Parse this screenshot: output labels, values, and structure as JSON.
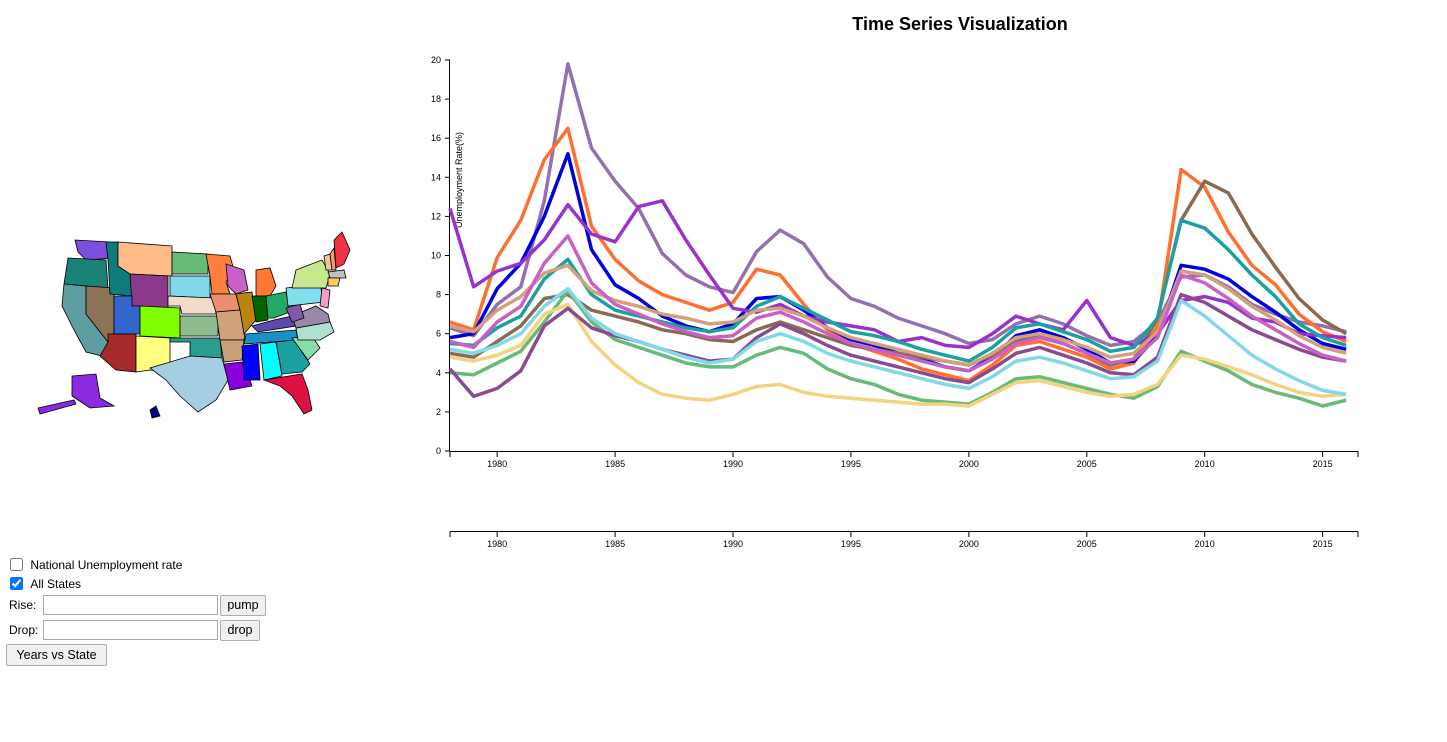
{
  "page": {
    "title": "Time Series Visualization"
  },
  "controls": {
    "national_label": "National Unemployment rate",
    "national_checked": false,
    "all_states_label": "All States",
    "all_states_checked": true,
    "rise_label": "Rise:",
    "rise_value": "",
    "pump_label": "pump",
    "drop_label": "Drop:",
    "drop_value": "",
    "drop_button_label": "drop",
    "years_vs_state_label": "Years vs State"
  },
  "map": {
    "states": [
      {
        "abbr": "WA",
        "color": "#7b4ee0"
      },
      {
        "abbr": "OR",
        "color": "#1a8276"
      },
      {
        "abbr": "CA",
        "color": "#5f9ea0"
      },
      {
        "abbr": "NV",
        "color": "#8b7355"
      },
      {
        "abbr": "ID",
        "color": "#0f7c7c"
      },
      {
        "abbr": "MT",
        "color": "#ffbb88"
      },
      {
        "abbr": "WY",
        "color": "#8b3a8b"
      },
      {
        "abbr": "UT",
        "color": "#3366cc"
      },
      {
        "abbr": "CO",
        "color": "#80ff00"
      },
      {
        "abbr": "AZ",
        "color": "#a52a2a"
      },
      {
        "abbr": "NM",
        "color": "#ffff80"
      },
      {
        "abbr": "ND",
        "color": "#66bb77"
      },
      {
        "abbr": "SD",
        "color": "#80d8e8"
      },
      {
        "abbr": "NE",
        "color": "#f0dcc8"
      },
      {
        "abbr": "KS",
        "color": "#8fbc8f"
      },
      {
        "abbr": "OK",
        "color": "#2a9d8f"
      },
      {
        "abbr": "TX",
        "color": "#a6cee3"
      },
      {
        "abbr": "MN",
        "color": "#ff7f3f"
      },
      {
        "abbr": "IA",
        "color": "#e89070"
      },
      {
        "abbr": "MO",
        "color": "#d2a07a"
      },
      {
        "abbr": "AR",
        "color": "#c8a07a"
      },
      {
        "abbr": "LA",
        "color": "#8800dd"
      },
      {
        "abbr": "WI",
        "color": "#c860c8"
      },
      {
        "abbr": "IL",
        "color": "#b8860b"
      },
      {
        "abbr": "MI",
        "color": "#ff7733"
      },
      {
        "abbr": "IN",
        "color": "#006400"
      },
      {
        "abbr": "OH",
        "color": "#22aa66"
      },
      {
        "abbr": "KY",
        "color": "#5a4aaa"
      },
      {
        "abbr": "TN",
        "color": "#1e90c8"
      },
      {
        "abbr": "MS",
        "color": "#0000ff"
      },
      {
        "abbr": "AL",
        "color": "#00ffff"
      },
      {
        "abbr": "GA",
        "color": "#1aa0a0"
      },
      {
        "abbr": "FL",
        "color": "#dd1144"
      },
      {
        "abbr": "SC",
        "color": "#88ddaa"
      },
      {
        "abbr": "NC",
        "color": "#b0e0d0"
      },
      {
        "abbr": "VA",
        "color": "#9988aa"
      },
      {
        "abbr": "WV",
        "color": "#7e5aa8"
      },
      {
        "abbr": "PA",
        "color": "#80e0f0"
      },
      {
        "abbr": "NY",
        "color": "#c8e890"
      },
      {
        "abbr": "ME",
        "color": "#ee3344"
      },
      {
        "abbr": "AK",
        "color": "#8a2be2"
      },
      {
        "abbr": "HI",
        "color": "#000080"
      }
    ]
  },
  "chart_data": {
    "type": "line",
    "title": "Time Series Visualization",
    "ylabel": "Unemployment Rate(%)",
    "xlabel": "",
    "xlim": [
      1978,
      2016.5
    ],
    "ylim": [
      0,
      20
    ],
    "x_ticks": [
      1980,
      1985,
      1990,
      1995,
      2000,
      2005,
      2010,
      2015
    ],
    "y_ticks": [
      0,
      2,
      4,
      6,
      8,
      10,
      12,
      14,
      16,
      18,
      20
    ],
    "x": [
      1978,
      1979,
      1980,
      1981,
      1982,
      1983,
      1984,
      1985,
      1986,
      1987,
      1988,
      1989,
      1990,
      1991,
      1992,
      1993,
      1994,
      1995,
      1996,
      1997,
      1998,
      1999,
      2000,
      2001,
      2002,
      2003,
      2004,
      2005,
      2006,
      2007,
      2008,
      2009,
      2010,
      2011,
      2012,
      2013,
      2014,
      2015,
      2016
    ],
    "series": [
      {
        "color": "#9370b0",
        "values": [
          6.3,
          5.9,
          7.5,
          8.4,
          12.8,
          19.8,
          15.5,
          13.8,
          12.4,
          10.1,
          9.0,
          8.4,
          8.1,
          10.2,
          11.3,
          10.6,
          8.9,
          7.8,
          7.4,
          6.8,
          6.4,
          6.0,
          5.5,
          5.7,
          6.5,
          6.9,
          6.5,
          5.9,
          5.4,
          5.6,
          6.6,
          8.9,
          9.0,
          8.4,
          7.5,
          7.0,
          6.6,
          6.4,
          6.1
        ]
      },
      {
        "color": "#ff7030",
        "values": [
          6.6,
          6.2,
          9.9,
          11.8,
          14.9,
          16.5,
          11.5,
          9.8,
          8.7,
          8.0,
          7.6,
          7.2,
          7.6,
          9.3,
          9.0,
          7.5,
          6.2,
          5.5,
          5.1,
          4.7,
          4.2,
          3.9,
          3.6,
          4.4,
          5.4,
          5.6,
          5.2,
          4.8,
          4.2,
          4.5,
          6.4,
          14.4,
          13.5,
          11.2,
          9.5,
          8.5,
          7.0,
          6.1,
          5.6
        ]
      },
      {
        "color": "#0000dd",
        "values": [
          5.8,
          6.0,
          8.3,
          9.6,
          12.0,
          15.2,
          10.3,
          8.5,
          7.8,
          6.9,
          6.4,
          6.1,
          6.5,
          7.8,
          7.9,
          7.2,
          6.3,
          5.7,
          5.4,
          5.0,
          4.7,
          4.3,
          4.1,
          4.8,
          5.9,
          6.2,
          5.8,
          5.2,
          4.5,
          4.6,
          5.9,
          9.5,
          9.3,
          8.8,
          7.9,
          7.1,
          6.2,
          5.5,
          5.2
        ]
      },
      {
        "color": "#8a6a50",
        "values": [
          5.0,
          4.8,
          5.6,
          6.4,
          7.8,
          8.0,
          7.2,
          6.9,
          6.6,
          6.2,
          6.0,
          5.7,
          5.6,
          6.2,
          6.6,
          6.2,
          5.8,
          5.4,
          5.2,
          5.0,
          4.8,
          4.6,
          4.4,
          4.9,
          5.6,
          5.9,
          5.5,
          5.0,
          4.4,
          4.7,
          6.8,
          11.8,
          13.8,
          13.2,
          11.1,
          9.4,
          7.8,
          6.7,
          6.0
        ]
      },
      {
        "color": "#9932cc",
        "values": [
          12.4,
          8.4,
          9.2,
          9.6,
          10.8,
          12.6,
          11.1,
          10.7,
          12.5,
          12.8,
          10.8,
          9.0,
          7.3,
          7.1,
          7.5,
          6.9,
          6.6,
          6.4,
          6.2,
          5.6,
          5.8,
          5.4,
          5.3,
          6.0,
          6.9,
          6.5,
          6.2,
          7.7,
          5.8,
          5.4,
          6.0,
          7.7,
          7.9,
          7.6,
          6.8,
          6.6,
          6.0,
          5.9,
          5.8
        ]
      },
      {
        "color": "#66bb77",
        "values": [
          4.0,
          3.9,
          4.5,
          5.1,
          6.6,
          8.2,
          6.6,
          5.7,
          5.3,
          4.9,
          4.5,
          4.3,
          4.3,
          4.9,
          5.3,
          5.0,
          4.2,
          3.7,
          3.4,
          2.9,
          2.6,
          2.5,
          2.4,
          3.0,
          3.7,
          3.8,
          3.5,
          3.2,
          2.9,
          2.7,
          3.3,
          5.1,
          4.6,
          4.1,
          3.4,
          3.0,
          2.7,
          2.3,
          2.6
        ]
      },
      {
        "color": "#1aa0a0",
        "values": [
          5.5,
          5.4,
          6.3,
          6.9,
          8.8,
          9.8,
          8.0,
          7.2,
          6.9,
          6.6,
          6.3,
          6.1,
          6.3,
          7.4,
          7.9,
          7.3,
          6.7,
          6.1,
          5.9,
          5.6,
          5.2,
          4.9,
          4.6,
          5.3,
          6.3,
          6.5,
          6.1,
          5.7,
          5.1,
          5.3,
          6.8,
          11.8,
          11.4,
          10.3,
          9.0,
          7.9,
          6.5,
          5.8,
          5.4
        ]
      },
      {
        "color": "#f4d380",
        "values": [
          4.8,
          4.6,
          4.9,
          5.4,
          7.0,
          7.5,
          5.6,
          4.4,
          3.5,
          2.9,
          2.7,
          2.6,
          2.9,
          3.3,
          3.4,
          3.0,
          2.8,
          2.7,
          2.6,
          2.5,
          2.4,
          2.4,
          2.3,
          2.9,
          3.5,
          3.6,
          3.3,
          3.0,
          2.8,
          2.9,
          3.4,
          4.9,
          4.7,
          4.3,
          3.9,
          3.4,
          3.0,
          2.8,
          2.9
        ]
      },
      {
        "color": "#8a4a90",
        "values": [
          4.2,
          2.8,
          3.2,
          4.1,
          6.4,
          7.3,
          6.3,
          5.9,
          5.6,
          5.2,
          4.9,
          4.6,
          4.7,
          5.8,
          6.5,
          6.0,
          5.4,
          4.9,
          4.6,
          4.3,
          4.0,
          3.7,
          3.5,
          4.2,
          5.0,
          5.3,
          4.9,
          4.5,
          4.0,
          3.9,
          4.8,
          8.0,
          7.6,
          6.9,
          6.2,
          5.7,
          5.2,
          4.8,
          4.6
        ]
      },
      {
        "color": "#80d8e8",
        "values": [
          5.2,
          5.0,
          5.4,
          6.0,
          7.4,
          8.3,
          6.8,
          6.0,
          5.6,
          5.2,
          4.8,
          4.5,
          4.7,
          5.6,
          6.0,
          5.6,
          5.0,
          4.6,
          4.3,
          4.0,
          3.7,
          3.4,
          3.2,
          3.8,
          4.6,
          4.8,
          4.5,
          4.1,
          3.7,
          3.8,
          4.6,
          7.7,
          6.9,
          5.9,
          4.9,
          4.2,
          3.6,
          3.1,
          2.9
        ]
      },
      {
        "color": "#d2a07a",
        "values": [
          6.4,
          6.1,
          7.2,
          7.9,
          9.1,
          9.5,
          8.2,
          7.7,
          7.4,
          7.0,
          6.8,
          6.5,
          6.6,
          7.2,
          7.3,
          6.9,
          6.3,
          5.8,
          5.5,
          5.2,
          4.9,
          4.6,
          4.4,
          5.0,
          5.8,
          6.0,
          5.7,
          5.3,
          4.8,
          5.0,
          6.1,
          9.2,
          9.0,
          8.3,
          7.4,
          6.7,
          5.9,
          5.3,
          5.0
        ]
      },
      {
        "color": "#c860c8",
        "values": [
          5.6,
          5.3,
          6.6,
          7.4,
          9.6,
          11.0,
          8.6,
          7.5,
          7.0,
          6.5,
          6.1,
          5.8,
          5.9,
          6.8,
          7.1,
          6.6,
          6.0,
          5.5,
          5.2,
          4.9,
          4.6,
          4.3,
          4.1,
          4.7,
          5.5,
          5.8,
          5.5,
          5.0,
          4.5,
          4.7,
          5.8,
          9.0,
          8.6,
          7.8,
          6.9,
          6.2,
          5.5,
          4.9,
          4.6
        ]
      }
    ]
  }
}
